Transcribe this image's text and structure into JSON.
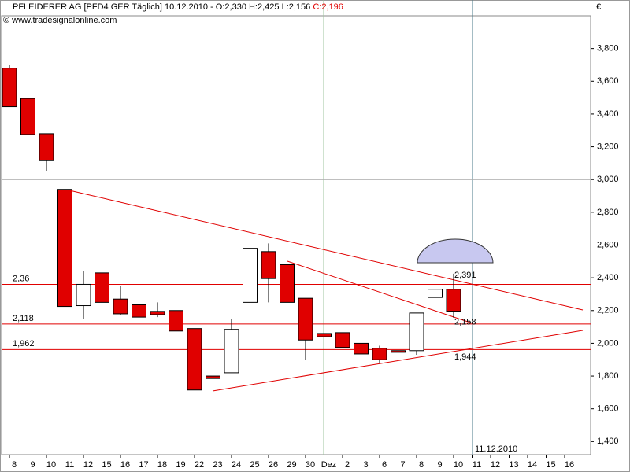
{
  "chart_data": {
    "type": "candlestick",
    "title": "PFLEIDERER AG [PFD4 GER  Täglich] 10.12.2010 - O:2,330 H:2,425 L:2,156",
    "title_close": "C:2,196",
    "subtitle": "© www.tradesignalonline.com",
    "currency": "€",
    "date_label": "11.12.2010",
    "categories": [
      "8",
      "9",
      "10",
      "11",
      "12",
      "15",
      "16",
      "17",
      "18",
      "19",
      "22",
      "23",
      "24",
      "25",
      "26",
      "29",
      "30",
      "Dez",
      "2",
      "3",
      "6",
      "7",
      "8",
      "9",
      "10",
      "11",
      "12",
      "13",
      "14",
      "15",
      "16"
    ],
    "open": [
      3680,
      3495,
      3280,
      2940,
      2230,
      2430,
      2270,
      2235,
      2195,
      2200,
      2090,
      1800,
      1820,
      2250,
      2560,
      2480,
      2275,
      2060,
      2065,
      2000,
      1970,
      1955,
      1955,
      2280,
      2330,
      null,
      null,
      null,
      null,
      null,
      null
    ],
    "high": [
      3700,
      3500,
      3280,
      2945,
      2440,
      2470,
      2350,
      2260,
      2250,
      2200,
      2090,
      1830,
      2150,
      2670,
      2610,
      2500,
      2275,
      2100,
      2065,
      2000,
      1985,
      1955,
      2185,
      2400,
      2425,
      null,
      null,
      null,
      null,
      null,
      null
    ],
    "low": [
      3445,
      3160,
      3050,
      2140,
      2150,
      2240,
      2170,
      2150,
      2160,
      1970,
      1715,
      1710,
      1820,
      2180,
      2250,
      2250,
      1900,
      2020,
      1970,
      1880,
      1880,
      1900,
      1930,
      2255,
      2156,
      null,
      null,
      null,
      null,
      null,
      null
    ],
    "close": [
      3445,
      3275,
      3115,
      2225,
      2360,
      2250,
      2180,
      2160,
      2175,
      2075,
      1715,
      1785,
      2085,
      2580,
      2395,
      2250,
      2020,
      2040,
      1975,
      1935,
      1900,
      1945,
      2185,
      2330,
      2196,
      null,
      null,
      null,
      null,
      null,
      null
    ],
    "up_color": "#ffffff",
    "down_color": "#e00000",
    "ylim": [
      1320,
      4000
    ],
    "yticks": [
      {
        "value": 1400,
        "label": "1,400"
      },
      {
        "value": 1600,
        "label": "1,600"
      },
      {
        "value": 1800,
        "label": "1,800"
      },
      {
        "value": 2000,
        "label": "2,000"
      },
      {
        "value": 2200,
        "label": "2,200"
      },
      {
        "value": 2400,
        "label": "2,400"
      },
      {
        "value": 2600,
        "label": "2,600"
      },
      {
        "value": 2800,
        "label": "2,800"
      },
      {
        "value": 3000,
        "label": "3,000"
      },
      {
        "value": 3200,
        "label": "3,200"
      },
      {
        "value": 3400,
        "label": "3,400"
      },
      {
        "value": 3600,
        "label": "3,600"
      },
      {
        "value": 3800,
        "label": "3,800"
      }
    ],
    "levels": [
      {
        "value": 2360,
        "label": "2,36"
      },
      {
        "value": 2118,
        "label": "2,118"
      },
      {
        "value": 1962,
        "label": "1,962"
      }
    ],
    "level_color": "#e00000",
    "annotations": [
      {
        "value": 2391,
        "label": "2,391"
      },
      {
        "value": 2158,
        "label": "2,158"
      },
      {
        "value": 1944,
        "label": "1,944"
      }
    ]
  }
}
